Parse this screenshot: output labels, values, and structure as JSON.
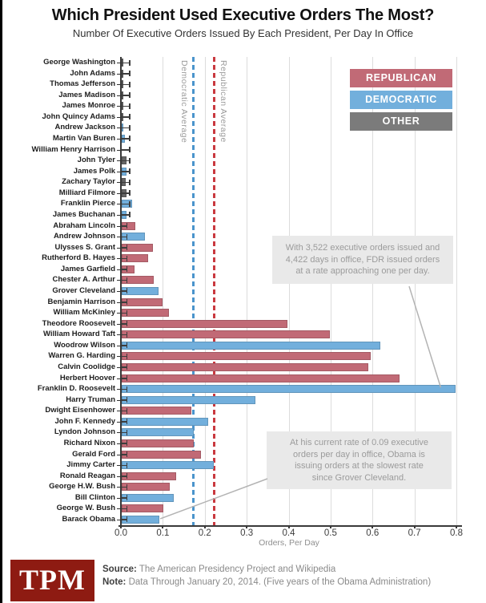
{
  "header": {
    "title": "Which President Used Executive Orders The Most?",
    "subtitle": "Number Of Executive Orders Issued By Each President, Per Day In Office"
  },
  "legend": [
    {
      "key": "republican",
      "label": "REPUBLICAN"
    },
    {
      "key": "democratic",
      "label": "DEMOCRATIC"
    },
    {
      "key": "other",
      "label": "OTHER"
    }
  ],
  "colors": {
    "republican": "#c16a76",
    "democratic": "#72afdc",
    "other": "#7b7b7b",
    "other_bar": "#666666",
    "democratic_line": "#4a94cc",
    "republican_line": "#c9393f"
  },
  "chart_data": {
    "type": "bar",
    "orientation": "horizontal",
    "title": "Which President Used Executive Orders The Most?",
    "xlabel": "Orders, Per Day",
    "xlim": [
      0,
      0.8
    ],
    "xticks": [
      "0.0",
      "0.1",
      "0.2",
      "0.3",
      "0.4",
      "0.5",
      "0.6",
      "0.7",
      "0.8"
    ],
    "grid": true,
    "bars": [
      {
        "name": "George Washington",
        "party": "other",
        "value": 0.003
      },
      {
        "name": "John Adams",
        "party": "other",
        "value": 0.001
      },
      {
        "name": "Thomas Jefferson",
        "party": "other",
        "value": 0.001
      },
      {
        "name": "James Madison",
        "party": "other",
        "value": 0.0005
      },
      {
        "name": "James Monroe",
        "party": "other",
        "value": 0.0005
      },
      {
        "name": "John Quincy Adams",
        "party": "other",
        "value": 0.002
      },
      {
        "name": "Andrew Jackson",
        "party": "democratic",
        "value": 0.004
      },
      {
        "name": "Martin Van Buren",
        "party": "democratic",
        "value": 0.007
      },
      {
        "name": "William Henry Harrison",
        "party": "other",
        "value": 0
      },
      {
        "name": "John Tyler",
        "party": "other",
        "value": 0.012
      },
      {
        "name": "James Polk",
        "party": "democratic",
        "value": 0.012
      },
      {
        "name": "Zachary Taylor",
        "party": "other",
        "value": 0.01
      },
      {
        "name": "Milliard Filmore",
        "party": "other",
        "value": 0.012
      },
      {
        "name": "Franklin Pierce",
        "party": "democratic",
        "value": 0.024
      },
      {
        "name": "James Buchanan",
        "party": "democratic",
        "value": 0.011
      },
      {
        "name": "Abraham Lincoln",
        "party": "republican",
        "value": 0.032
      },
      {
        "name": "Andrew Johnson",
        "party": "democratic",
        "value": 0.056
      },
      {
        "name": "Ulysses S. Grant",
        "party": "republican",
        "value": 0.074
      },
      {
        "name": "Rutherford B. Hayes",
        "party": "republican",
        "value": 0.063
      },
      {
        "name": "James Garfield",
        "party": "republican",
        "value": 0.03
      },
      {
        "name": "Chester A. Arthur",
        "party": "republican",
        "value": 0.076
      },
      {
        "name": "Grover Cleveland",
        "party": "democratic",
        "value": 0.087
      },
      {
        "name": "Benjamin Harrison",
        "party": "republican",
        "value": 0.098
      },
      {
        "name": "William McKinley",
        "party": "republican",
        "value": 0.112
      },
      {
        "name": "Theodore Roosevelt",
        "party": "republican",
        "value": 0.396
      },
      {
        "name": "William Howard Taft",
        "party": "republican",
        "value": 0.496
      },
      {
        "name": "Woodrow Wilson",
        "party": "democratic",
        "value": 0.617
      },
      {
        "name": "Warren G. Harding",
        "party": "republican",
        "value": 0.593
      },
      {
        "name": "Calvin Coolidge",
        "party": "republican",
        "value": 0.589
      },
      {
        "name": "Herbert Hoover",
        "party": "republican",
        "value": 0.663
      },
      {
        "name": "Franklin D. Roosevelt",
        "party": "democratic",
        "value": 0.797
      },
      {
        "name": "Harry Truman",
        "party": "democratic",
        "value": 0.319
      },
      {
        "name": "Dwight Eisenhower",
        "party": "republican",
        "value": 0.166
      },
      {
        "name": "John F. Kennedy",
        "party": "democratic",
        "value": 0.207
      },
      {
        "name": "Lyndon Johnson",
        "party": "democratic",
        "value": 0.172
      },
      {
        "name": "Richard Nixon",
        "party": "republican",
        "value": 0.171
      },
      {
        "name": "Gerald Ford",
        "party": "republican",
        "value": 0.189
      },
      {
        "name": "Jimmy Carter",
        "party": "democratic",
        "value": 0.219
      },
      {
        "name": "Ronald Reagan",
        "party": "republican",
        "value": 0.13
      },
      {
        "name": "George H.W. Bush",
        "party": "republican",
        "value": 0.114
      },
      {
        "name": "Bill Clinton",
        "party": "democratic",
        "value": 0.125
      },
      {
        "name": "George W. Bush",
        "party": "republican",
        "value": 0.1
      },
      {
        "name": "Barack Obama",
        "party": "democratic",
        "value": 0.09
      }
    ],
    "reference_lines": [
      {
        "key": "democratic-average",
        "label": "Democratic Average",
        "value": 0.172,
        "side": "left"
      },
      {
        "key": "republican-average",
        "label": "Republican Average",
        "value": 0.223,
        "side": "right"
      }
    ]
  },
  "annotations": {
    "fdr": {
      "lines": [
        "With 3,522 executive orders issued and",
        "4,422 days in office, FDR issued orders",
        "at a rate approaching one per day."
      ],
      "points_to": "Franklin D. Roosevelt"
    },
    "obama": {
      "lines": [
        "At his current rate of 0.09 executive",
        "orders per day in office, Obama is",
        "issuing orders at the slowest rate",
        "since Grover Cleveland."
      ],
      "points_to": "Barack Obama"
    }
  },
  "footer": {
    "logo": "TPM",
    "source_label": "Source:",
    "source_text": "The American Presidency Project and Wikipedia",
    "note_label": "Note:",
    "note_text": "Data Through January 20, 2014. (Five years of the Obama Administration)"
  }
}
